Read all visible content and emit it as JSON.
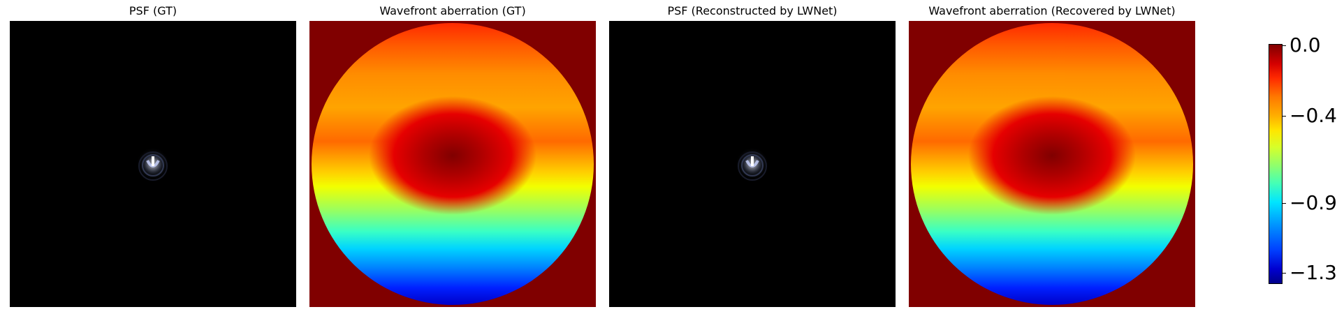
{
  "panels": [
    {
      "title": "PSF (GT)"
    },
    {
      "title": "Wavefront aberration (GT)"
    },
    {
      "title": "PSF (Reconstructed by LWNet)"
    },
    {
      "title": "Wavefront aberration (Recovered by LWNet)"
    }
  ],
  "colorbar": {
    "ticks": [
      "0.0",
      "−0.4",
      "−0.9",
      "−1.3"
    ],
    "range": [
      -1.35,
      0.0
    ],
    "colormap": "jet"
  },
  "colors": {
    "background": "#ffffff",
    "psf_background": "#000000",
    "wavefront_outside": "#800000"
  }
}
